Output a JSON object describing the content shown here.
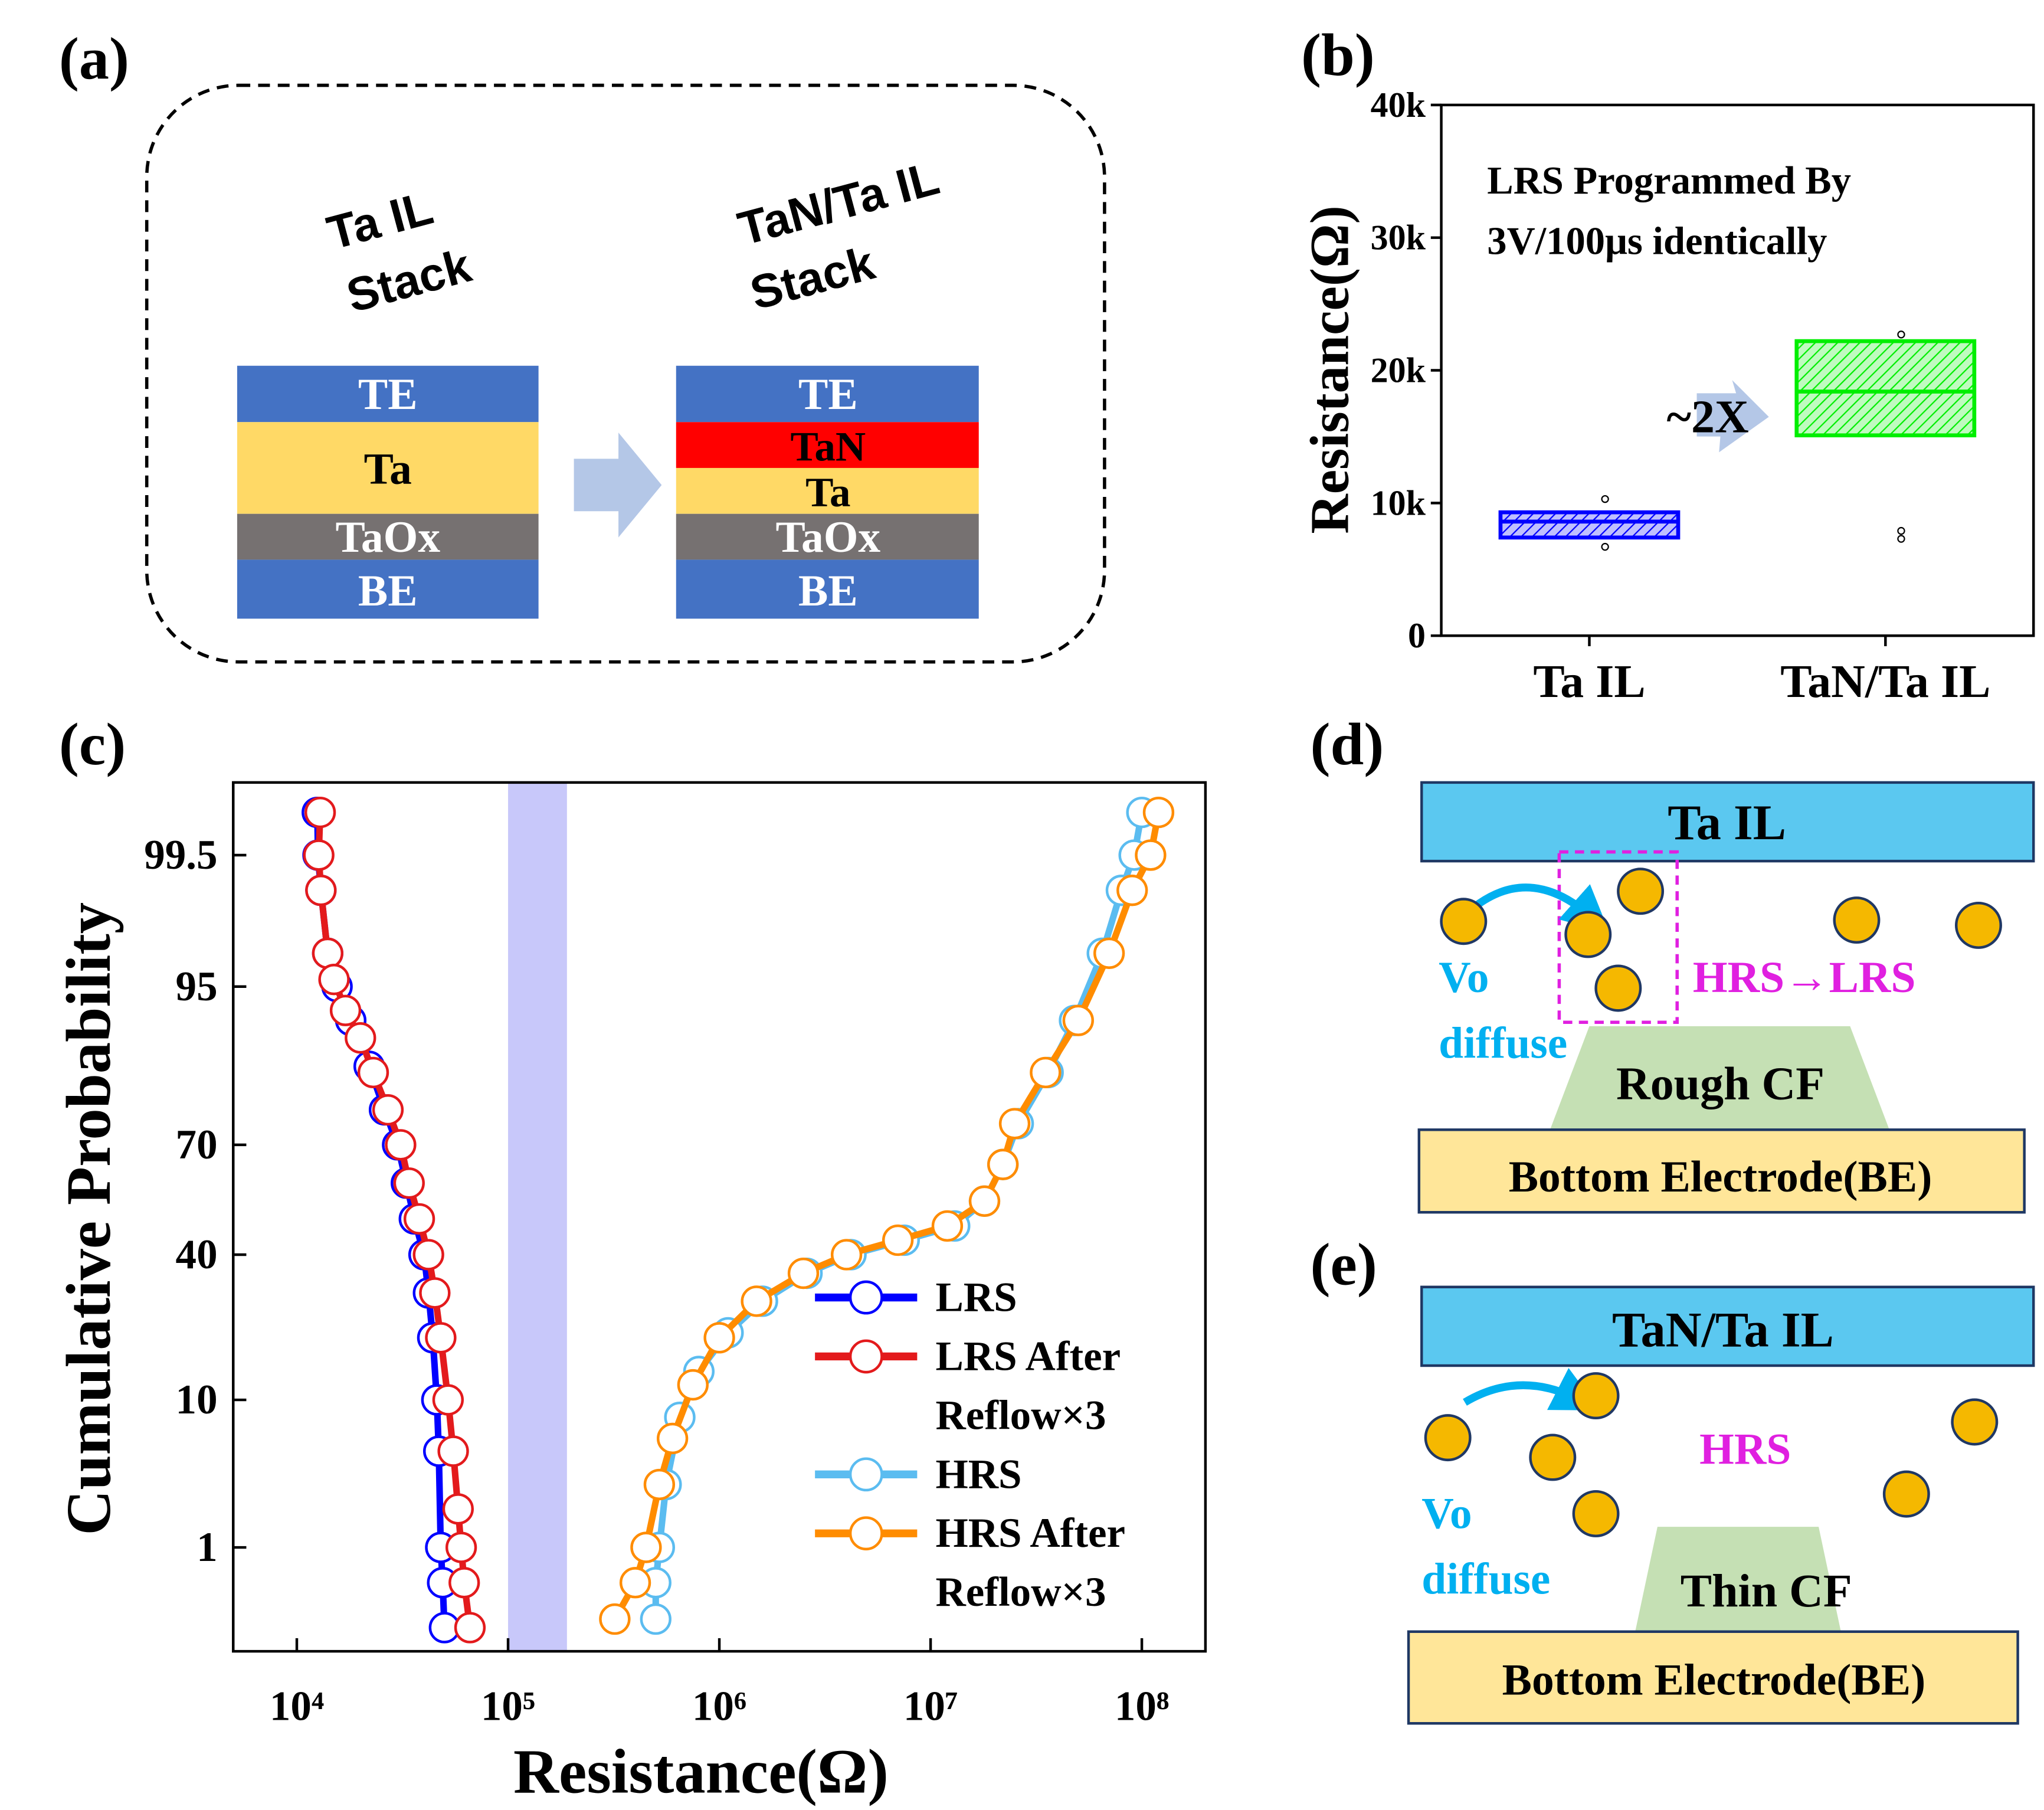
{
  "chart_data": [
    {
      "type": "box",
      "panel": "(b)",
      "ylabel": "Resistance(Ω)",
      "annotations": [
        "LRS Programmed By",
        "3V/100μs identically",
        "~2X"
      ],
      "categories": [
        "Ta IL",
        "TaN/Ta IL"
      ],
      "boxes": [
        {
          "q1": 7400,
          "median": 8600,
          "q3": 9300,
          "outliers": [
            10300,
            6700
          ],
          "color": "#0000ff"
        },
        {
          "q1": 15100,
          "median": 18400,
          "q3": 22200,
          "outliers": [
            22700,
            7900,
            7300
          ],
          "color": "#00ee00"
        }
      ],
      "ylim": [
        0,
        40000
      ],
      "yticks": [
        0,
        {
          "value": 10000,
          "label": "10k"
        },
        {
          "value": 20000,
          "label": "20k"
        },
        {
          "value": 30000,
          "label": "30k"
        },
        {
          "value": 40000,
          "label": "40k"
        }
      ]
    },
    {
      "type": "cdf",
      "panel": "(c)",
      "xlabel": "Resistance(Ω)",
      "ylabel": "Cumulative Probability",
      "xscale": "log",
      "yscale": "probability",
      "legend": "lower right",
      "xlim": [
        5000,
        200000000
      ],
      "ylim": [
        0.11,
        99.9
      ],
      "xticks": [
        {
          "value": 10000,
          "label": "10⁴"
        },
        {
          "value": 100000,
          "label": "10⁵"
        },
        {
          "value": 1000000,
          "label": "10⁶"
        },
        {
          "value": 10000000,
          "label": "10⁷"
        },
        {
          "value": 100000000,
          "label": "10⁸"
        }
      ],
      "yticks": [
        1,
        10,
        40,
        70,
        95,
        99.5
      ],
      "band": [
        100000,
        190000
      ],
      "band_color": "#c8c8fa",
      "series": [
        {
          "name": "LRS",
          "color": "#0000ff",
          "x": [
            12500,
            12600,
            13000,
            14000,
            15500,
            18000,
            22000,
            26000,
            30000,
            33000,
            36000,
            40000,
            42000,
            44000,
            46000,
            47000,
            48000,
            49000,
            50000
          ],
          "values": [
            99.8,
            99.5,
            99,
            97,
            95,
            92,
            86,
            78,
            70,
            60,
            50,
            40,
            30,
            20,
            10,
            5,
            1,
            0.5,
            0.19
          ]
        },
        {
          "name": "LRS After Reflow×3",
          "color": "#e31a1c",
          "x": [
            12900,
            12700,
            13000,
            14000,
            15000,
            17000,
            20000,
            23000,
            27000,
            31000,
            34000,
            38000,
            42000,
            45000,
            48000,
            52000,
            55000,
            58000,
            60000,
            62000,
            66000
          ],
          "values": [
            99.8,
            99.5,
            99,
            97,
            95.5,
            93,
            90,
            85,
            78,
            70,
            60,
            50,
            40,
            30,
            20,
            10,
            5,
            2,
            1,
            0.5,
            0.19
          ]
        },
        {
          "name": "HRS",
          "color": "#5bbcf0",
          "x": [
            500000,
            500000,
            520000,
            560000,
            650000,
            800000,
            1100000,
            1600000,
            2600000,
            4200000,
            7500000,
            13000000,
            18000000,
            22000000,
            26000000,
            36000000,
            48000000,
            65000000,
            80000000,
            92000000,
            100000000
          ],
          "values": [
            0.23,
            0.5,
            1,
            3,
            8,
            14,
            21,
            28,
            35,
            40,
            44,
            48,
            55,
            65,
            75,
            85,
            92,
            97,
            99,
            99.5,
            99.8
          ]
        },
        {
          "name": "HRS After Reflow×3",
          "color": "#ff8c00",
          "x": [
            320000,
            400000,
            450000,
            520000,
            600000,
            750000,
            1000000,
            1500000,
            2500000,
            4000000,
            7000000,
            12000000,
            18000000,
            22000000,
            25000000,
            35000000,
            50000000,
            70000000,
            90000000,
            110000000,
            120000000
          ],
          "values": [
            0.23,
            0.5,
            1,
            3,
            6,
            12,
            20,
            28,
            35,
            40,
            44,
            48,
            55,
            65,
            75,
            85,
            92,
            97,
            99,
            99.5,
            99.8
          ]
        }
      ]
    }
  ],
  "diagrams": {
    "a": {
      "panel": "(a)",
      "left_stack": {
        "title": [
          "Ta IL",
          "Stack"
        ],
        "layers": [
          "TE",
          "Ta",
          "TaOx",
          "BE"
        ]
      },
      "right_stack": {
        "title": [
          "TaN/Ta IL",
          "Stack"
        ],
        "layers": [
          "TE",
          "TaN",
          "Ta",
          "TaOx",
          "BE"
        ]
      }
    },
    "d": {
      "panel": "(d)",
      "top": "Ta IL",
      "vo": [
        "Vo",
        "diffuse"
      ],
      "state": "HRS→LRS",
      "cf": "Rough CF",
      "bottom": "Bottom Electrode(BE)"
    },
    "e": {
      "panel": "(e)",
      "top": "TaN/Ta IL",
      "vo": [
        "Vo",
        "diffuse"
      ],
      "state": "HRS",
      "cf": "Thin CF",
      "bottom": "Bottom Electrode(BE)"
    }
  }
}
